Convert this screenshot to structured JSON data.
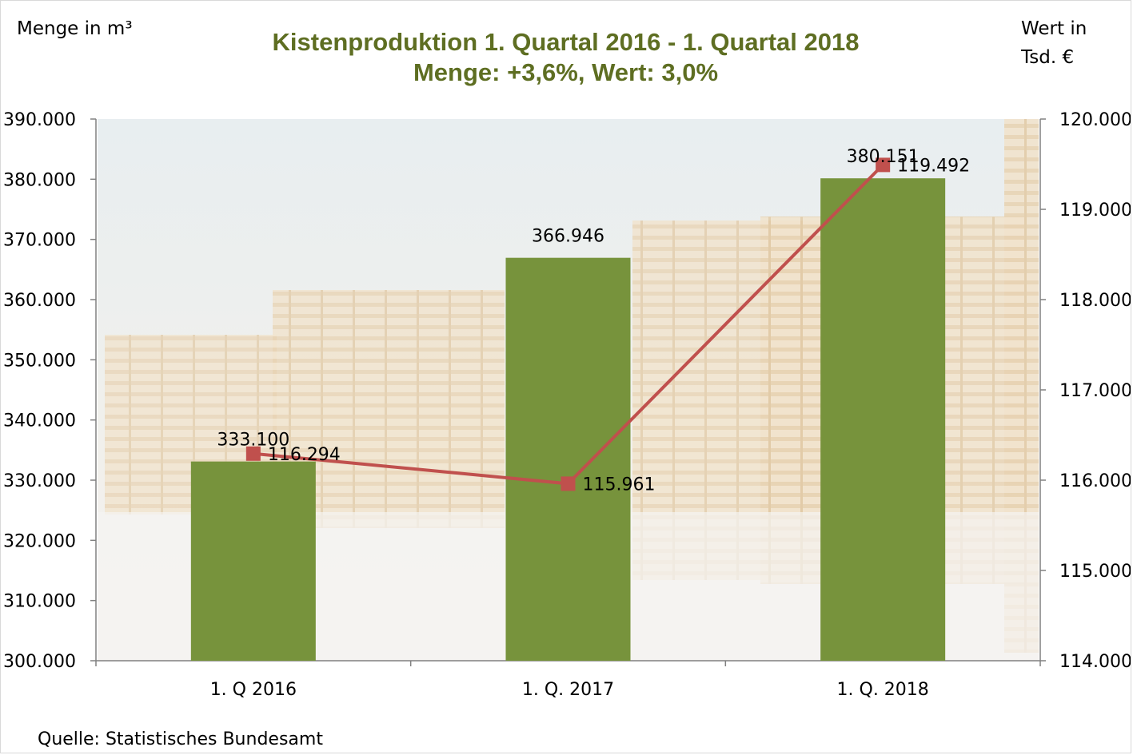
{
  "chart_data": {
    "type": "bar",
    "title": "Kistenproduktion 1. Quartal 2016 - 1. Quartal 2018",
    "subtitle": "Menge: +3,6%, Wert: 3,0%",
    "categories": [
      "1. Q 2016",
      "1. Q. 2017",
      "1. Q. 2018"
    ],
    "series": [
      {
        "type": "bar",
        "axis": "left",
        "values": [
          333100,
          366946,
          380151
        ],
        "labels": [
          "333.100",
          "366.946",
          "380.151"
        ],
        "color": "#77933c"
      },
      {
        "type": "line",
        "axis": "right",
        "values": [
          116294,
          115961,
          119492
        ],
        "labels": [
          "116.294",
          "115.961",
          "119.492"
        ],
        "color": "#c0504d"
      }
    ],
    "ylabel": "Menge in m³",
    "y2label": "Wert in Tsd. €",
    "ylim": [
      300000,
      390000
    ],
    "y2lim": [
      114000,
      120000
    ],
    "yticks": [
      "300.000",
      "310.000",
      "320.000",
      "330.000",
      "340.000",
      "350.000",
      "360.000",
      "370.000",
      "380.000",
      "390.000"
    ],
    "y2ticks": [
      "114.000",
      "115.000",
      "116.000",
      "117.000",
      "118.000",
      "119.000",
      "120.000"
    ],
    "grid": false,
    "legend": "none"
  },
  "source": "Quelle: Statistisches Bundesamt"
}
